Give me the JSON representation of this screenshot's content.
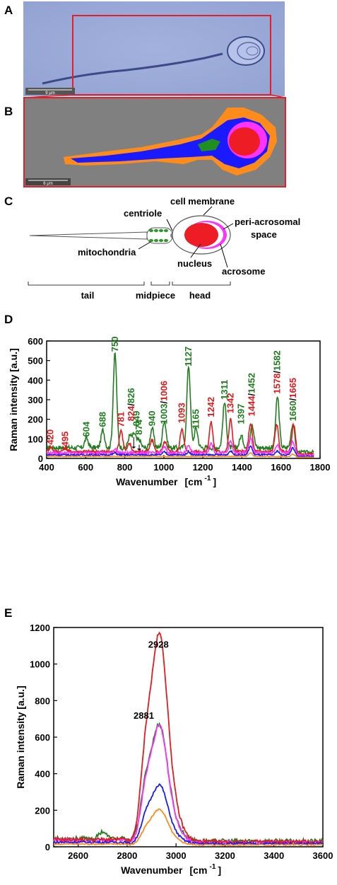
{
  "panels": {
    "a": {
      "letter": "A",
      "scalebar": "9 μm"
    },
    "b": {
      "letter": "B",
      "scalebar": "6 μm"
    },
    "c": {
      "letter": "C",
      "labels": {
        "cell_membrane": "cell membrane",
        "centriole": "centriole",
        "periacrosomal_1": "peri-acrosomal",
        "periacrosomal_2": "space",
        "mitochondria": "mitochondria",
        "nucleus": "nucleus",
        "acrosome": "acrosome",
        "tail": "tail",
        "midpiece": "midpiece",
        "head": "head"
      }
    },
    "d": {
      "letter": "D"
    },
    "e": {
      "letter": "E"
    }
  },
  "colors": {
    "red": "#e41a1c",
    "green": "#1f7f1f",
    "magenta": "#ff33ff",
    "blue": "#1a1aff",
    "orange": "#ff8c1a",
    "micro_bg": "#9aaad8",
    "map_gray": "#808080"
  },
  "chart_data": [
    {
      "type": "line",
      "xlabel": "Wavenumber",
      "xunit": "[cm",
      "xunit_sup": "-1",
      "xunit_close": "]",
      "ylabel": "Raman intensity [a.u.]",
      "xlim": [
        400,
        1800
      ],
      "ylim": [
        0,
        600
      ],
      "xticks": [
        400,
        600,
        800,
        1000,
        1200,
        1400,
        1600,
        1800
      ],
      "yticks": [
        0,
        100,
        200,
        300,
        400,
        500,
        600
      ],
      "series": [
        {
          "color": "green",
          "peaks": [
            [
              604,
              50
            ],
            [
              688,
              90
            ],
            [
              750,
              480
            ],
            [
              826,
              60
            ],
            [
              849,
              70
            ],
            [
              874,
              40
            ],
            [
              940,
              100
            ],
            [
              1003,
              140
            ],
            [
              1127,
              420
            ],
            [
              1165,
              100
            ],
            [
              1311,
              230
            ],
            [
              1397,
              60
            ],
            [
              1452,
              120
            ],
            [
              1582,
              260
            ],
            [
              1660,
              120
            ]
          ],
          "base": 55
        },
        {
          "color": "red",
          "peaks": [
            [
              420,
              25
            ],
            [
              495,
              20
            ],
            [
              781,
              110
            ],
            [
              824,
              40
            ],
            [
              940,
              60
            ],
            [
              1006,
              50
            ],
            [
              1093,
              120
            ],
            [
              1242,
              150
            ],
            [
              1342,
              165
            ],
            [
              1444,
              145
            ],
            [
              1578,
              140
            ],
            [
              1665,
              140
            ]
          ],
          "base": 35
        },
        {
          "color": "magenta",
          "peaks": [
            [
              750,
              20
            ],
            [
              1003,
              30
            ],
            [
              1127,
              40
            ],
            [
              1242,
              50
            ],
            [
              1342,
              60
            ],
            [
              1444,
              80
            ],
            [
              1582,
              40
            ],
            [
              1660,
              60
            ]
          ],
          "base": 28
        },
        {
          "color": "blue",
          "peaks": [
            [
              750,
              10
            ],
            [
              1003,
              15
            ],
            [
              1127,
              15
            ],
            [
              1342,
              20
            ],
            [
              1444,
              45
            ],
            [
              1582,
              20
            ],
            [
              1660,
              35
            ]
          ],
          "base": 18
        },
        {
          "color": "orange",
          "peaks": [
            [
              1444,
              18
            ],
            [
              1660,
              12
            ]
          ],
          "base": 10
        }
      ],
      "annotations": [
        {
          "text": "420",
          "color": "red",
          "x": 420,
          "y": 70,
          "rot": true
        },
        {
          "text": "495",
          "color": "red",
          "x": 495,
          "y": 60,
          "rot": true
        },
        {
          "text": "604",
          "color": "green",
          "x": 604,
          "y": 110,
          "rot": true
        },
        {
          "text": "688",
          "color": "green",
          "x": 688,
          "y": 160,
          "rot": true
        },
        {
          "text": "750",
          "color": "green",
          "x": 750,
          "y": 545,
          "rot": true
        },
        {
          "text": "781",
          "color": "red",
          "x": 781,
          "y": 160,
          "rot": true
        },
        {
          "text": "874",
          "color": "green",
          "x": 874,
          "y": 120,
          "rot": true
        },
        {
          "text": "849",
          "color": "green",
          "x": 862,
          "y": 165,
          "rot": true
        },
        {
          "text": "940",
          "color": "green",
          "x": 940,
          "y": 165,
          "rot": true
        },
        {
          "text": "1093",
          "color": "red",
          "x": 1093,
          "y": 180,
          "rot": true
        },
        {
          "text": "1127",
          "color": "green",
          "x": 1127,
          "y": 470,
          "rot": true
        },
        {
          "text": "1165",
          "color": "green",
          "x": 1165,
          "y": 150,
          "rot": true
        },
        {
          "text": "1242",
          "color": "red",
          "x": 1242,
          "y": 210,
          "rot": true
        },
        {
          "text": "1311",
          "color": "green",
          "x": 1311,
          "y": 300,
          "rot": true
        },
        {
          "text": "1342",
          "color": "red",
          "x": 1342,
          "y": 230,
          "rot": true
        },
        {
          "text": "1397",
          "color": "green",
          "x": 1397,
          "y": 175,
          "rot": true
        }
      ],
      "split_annotations": [
        {
          "a": "824",
          "ca": "red",
          "b": "826",
          "cb": "green",
          "x": 834,
          "y": 190
        },
        {
          "a": "1003",
          "ca": "green",
          "b": "1006",
          "cb": "red",
          "x": 1003,
          "y": 175
        },
        {
          "a": "1444",
          "ca": "red",
          "b": "1452",
          "cb": "green",
          "x": 1450,
          "y": 215
        },
        {
          "a": "1578",
          "ca": "red",
          "b": "1582",
          "cb": "green",
          "x": 1582,
          "y": 330
        },
        {
          "a": "1660",
          "ca": "green",
          "b": "1665",
          "cb": "red",
          "x": 1662,
          "y": 190
        }
      ]
    },
    {
      "type": "line",
      "xlabel": "Wavenumber",
      "xunit": "[cm",
      "xunit_sup": "-1",
      "xunit_close": "]",
      "ylabel": "Raman intensity [a.u.]",
      "xlim": [
        2500,
        3600
      ],
      "ylim": [
        0,
        1200
      ],
      "xticks": [
        2600,
        2800,
        3000,
        3200,
        3400,
        3600
      ],
      "yticks": [
        0,
        200,
        400,
        600,
        800,
        1000,
        1200
      ],
      "series": [
        {
          "color": "green",
          "peak": 575,
          "shoulder": 420,
          "base": 45
        },
        {
          "color": "magenta",
          "peak": 575,
          "shoulder": 400,
          "base": 35
        },
        {
          "color": "red",
          "peak": 1025,
          "shoulder": 680,
          "base": 40
        },
        {
          "color": "blue",
          "peak": 290,
          "shoulder": 200,
          "base": 25
        },
        {
          "color": "orange",
          "peak": 175,
          "shoulder": 110,
          "base": 15
        }
      ],
      "annotations": [
        {
          "text": "2928",
          "color": "black",
          "x": 2928,
          "y": 1090
        },
        {
          "text": "2881",
          "color": "black",
          "x": 2868,
          "y": 700
        }
      ]
    }
  ]
}
